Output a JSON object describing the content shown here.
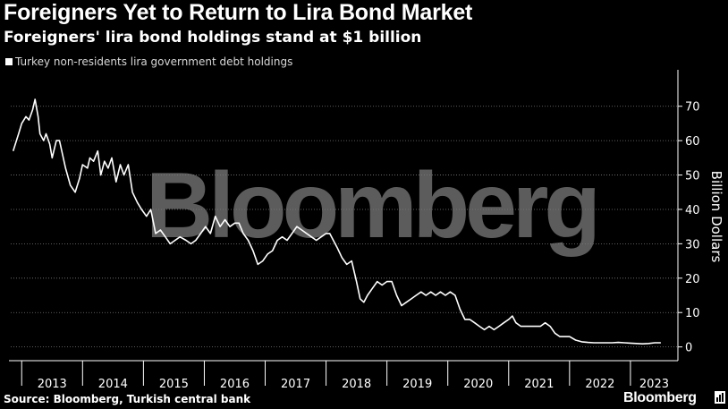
{
  "title": "Foreigners Yet to Return to Lira Bond Market",
  "subtitle": "Foreigners' lira bond holdings stand at $1 billion",
  "legend": {
    "label": "Turkey non-residents lira government debt holdings",
    "color": "#ffffff"
  },
  "source": "Source: Bloomberg, Turkish central bank",
  "brand": "Bloomberg",
  "watermark": "Bloomberg",
  "brand_icon": "bar-chart-icon",
  "colors": {
    "background": "#000000",
    "line": "#ffffff",
    "watermark": "#5c5c5c",
    "grid": "#7a7a7a"
  },
  "chart_data": {
    "type": "line",
    "title": "Foreigners Yet to Return to Lira Bond Market",
    "subtitle": "Foreigners' lira bond holdings stand at $1 billion",
    "ylabel": "Billion Dollars",
    "xlabel": "",
    "ylim": [
      -4,
      78
    ],
    "yticks": [
      0,
      10,
      20,
      30,
      40,
      50,
      60,
      70
    ],
    "x_categories": [
      "2013",
      "2014",
      "2015",
      "2016",
      "2017",
      "2018",
      "2019",
      "2020",
      "2021",
      "2022",
      "2023"
    ],
    "grid": "horizontal dotted",
    "legend_position": "top-left",
    "series": [
      {
        "name": "Turkey non-residents lira government debt holdings",
        "color": "#ffffff",
        "x": [
          2012.86,
          2012.95,
          2013.0,
          2013.07,
          2013.12,
          2013.18,
          2013.22,
          2013.27,
          2013.3,
          2013.36,
          2013.4,
          2013.46,
          2013.5,
          2013.57,
          2013.62,
          2013.67,
          2013.72,
          2013.8,
          2013.88,
          2013.95,
          2014.0,
          2014.08,
          2014.12,
          2014.18,
          2014.25,
          2014.3,
          2014.36,
          2014.42,
          2014.48,
          2014.55,
          2014.62,
          2014.68,
          2014.75,
          2014.82,
          2014.9,
          2014.97,
          2015.05,
          2015.12,
          2015.2,
          2015.28,
          2015.36,
          2015.44,
          2015.52,
          2015.6,
          2015.7,
          2015.78,
          2015.86,
          2015.94,
          2016.02,
          2016.1,
          2016.18,
          2016.26,
          2016.34,
          2016.42,
          2016.5,
          2016.57,
          2016.64,
          2016.72,
          2016.8,
          2016.88,
          2016.96,
          2017.04,
          2017.12,
          2017.2,
          2017.28,
          2017.36,
          2017.44,
          2017.52,
          2017.6,
          2017.68,
          2017.76,
          2017.84,
          2017.92,
          2018.0,
          2018.06,
          2018.12,
          2018.18,
          2018.26,
          2018.34,
          2018.42,
          2018.5,
          2018.56,
          2018.62,
          2018.68,
          2018.76,
          2018.84,
          2018.92,
          2019.0,
          2019.08,
          2019.16,
          2019.24,
          2019.32,
          2019.4,
          2019.48,
          2019.56,
          2019.64,
          2019.72,
          2019.8,
          2019.88,
          2019.96,
          2020.04,
          2020.12,
          2020.2,
          2020.28,
          2020.36,
          2020.44,
          2020.52,
          2020.6,
          2020.68,
          2020.76,
          2020.84,
          2020.92,
          2021.0,
          2021.06,
          2021.12,
          2021.2,
          2021.28,
          2021.36,
          2021.44,
          2021.52,
          2021.6,
          2021.68,
          2021.76,
          2021.84,
          2021.92,
          2022.0,
          2022.1,
          2022.2,
          2022.3,
          2022.4,
          2022.5,
          2022.6,
          2022.7,
          2022.8,
          2022.9,
          2023.0,
          2023.1,
          2023.2,
          2023.3,
          2023.4,
          2023.5
        ],
        "y": [
          57,
          62,
          65,
          67,
          66,
          69,
          72,
          67,
          62,
          60,
          62,
          59,
          55,
          60,
          60,
          56,
          52,
          47,
          45,
          49,
          53,
          52,
          55,
          54,
          57,
          50,
          54,
          52,
          55,
          48,
          53,
          50,
          53,
          45,
          42,
          40,
          38,
          40,
          33,
          34,
          32,
          30,
          31,
          32,
          31,
          30,
          31,
          33,
          35,
          33,
          38,
          35,
          37,
          35,
          36,
          36,
          33,
          31,
          28,
          24,
          25,
          27,
          28,
          31,
          32,
          31,
          33,
          35,
          34,
          33,
          32,
          31,
          32,
          33,
          33,
          31,
          29,
          26,
          24,
          25,
          19,
          14,
          13,
          15,
          17,
          19,
          18,
          19,
          19,
          15,
          12,
          13,
          14,
          15,
          16,
          15,
          16,
          15,
          16,
          15,
          16,
          15,
          11,
          8,
          8,
          7,
          6,
          5,
          6,
          5,
          6,
          7,
          8,
          9,
          7,
          6,
          6,
          6,
          6,
          6,
          7,
          6,
          4,
          3,
          3,
          3,
          2,
          1.5,
          1.3,
          1.2,
          1.2,
          1.2,
          1.2,
          1.3,
          1.2,
          1.1,
          1.0,
          0.9,
          1.0,
          1.2,
          1.2
        ]
      }
    ]
  }
}
